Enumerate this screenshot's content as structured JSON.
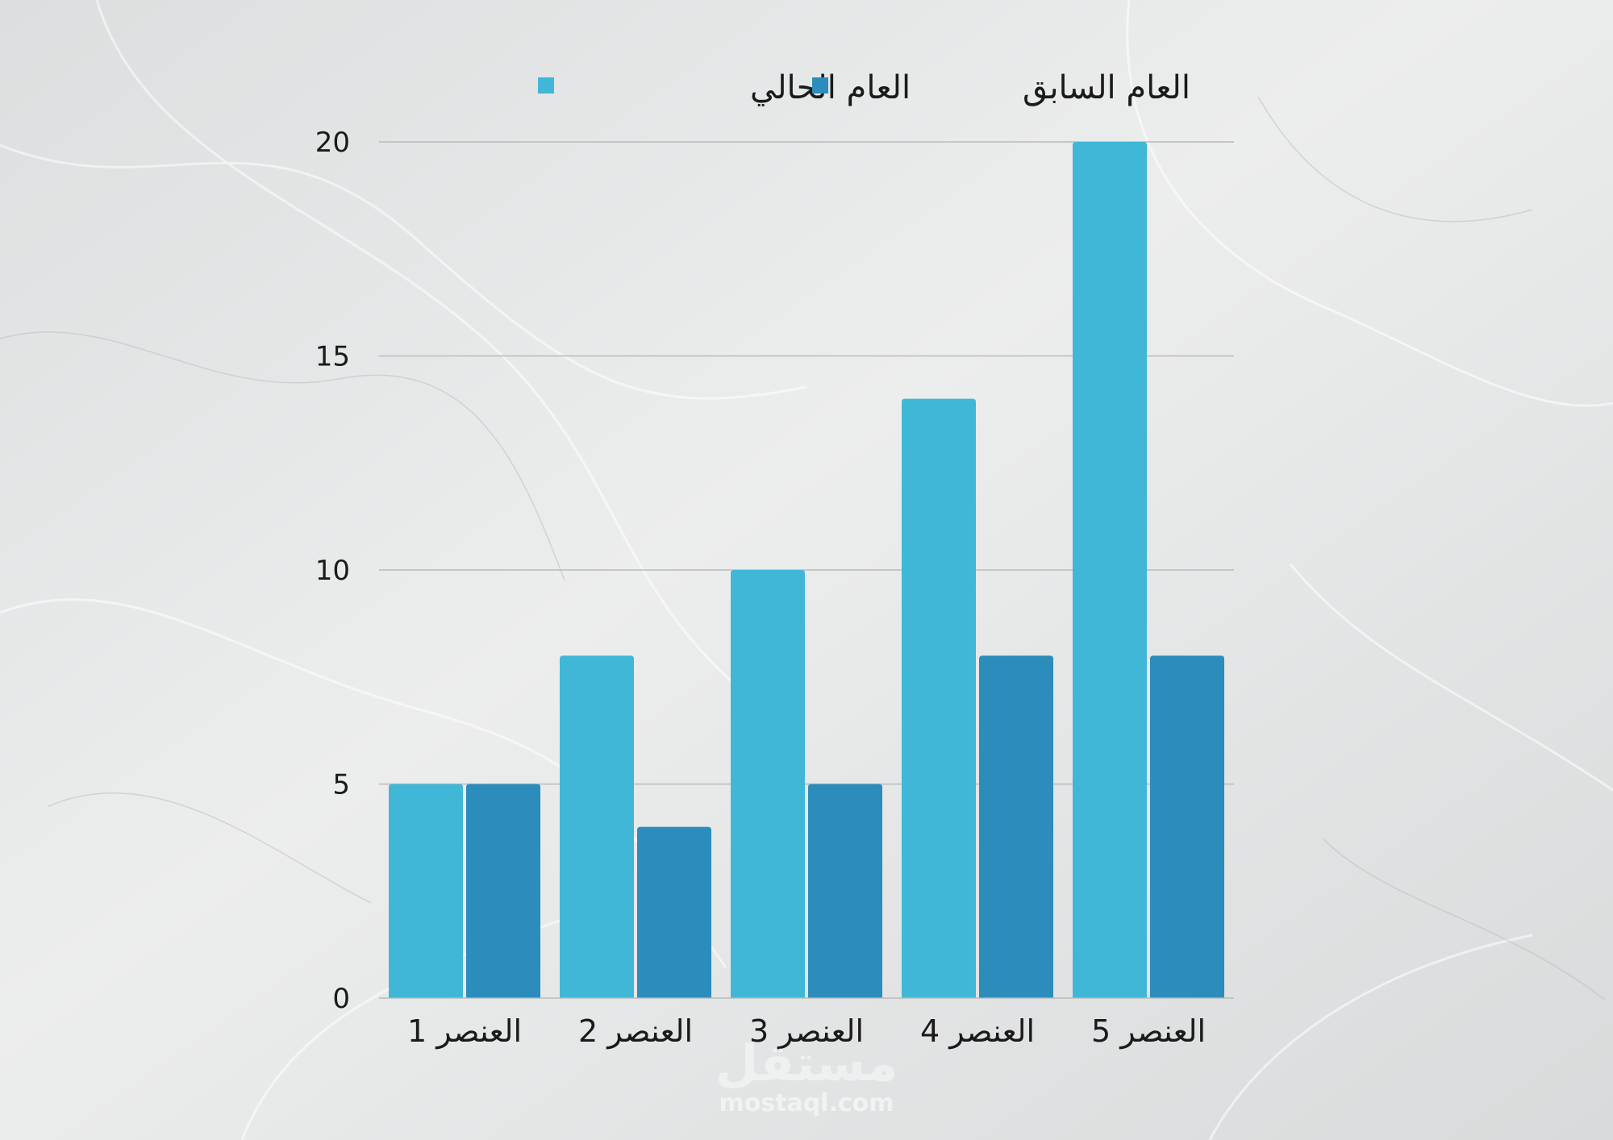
{
  "colors": {
    "current": "#41b7d7",
    "previous": "#2c8cbb",
    "grid": "#b9babb",
    "text": "#1a1a1a"
  },
  "legend": {
    "current_label": "العام الحالي",
    "previous_label": "العام السابق",
    "placement": "top"
  },
  "watermark": {
    "logo_text": "مستقل",
    "site": "mostaql.com"
  },
  "chart_data": {
    "type": "bar",
    "categories": [
      "العنصر 1",
      "العنصر 2",
      "العنصر 3",
      "العنصر 4",
      "العنصر 5"
    ],
    "series": [
      {
        "name": "العام الحالي",
        "values": [
          5,
          8,
          10,
          14,
          20
        ]
      },
      {
        "name": "العام السابق",
        "values": [
          5,
          4,
          5,
          8,
          8
        ]
      }
    ],
    "title": "",
    "xlabel": "",
    "ylabel": "",
    "ylim": [
      0,
      20
    ],
    "yticks": [
      "0",
      "5",
      "10",
      "15",
      "20"
    ],
    "grid": true
  }
}
